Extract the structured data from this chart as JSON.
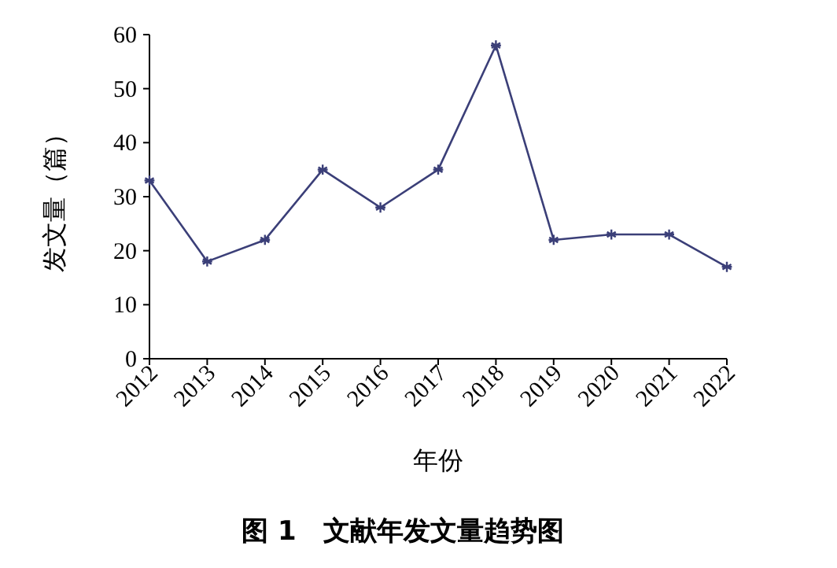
{
  "chart_data": {
    "type": "line",
    "title": "图 1　文献年发文量趋势图",
    "xlabel": "年份",
    "ylabel": "发文量（篇）",
    "categories": [
      "2012",
      "2013",
      "2014",
      "2015",
      "2016",
      "2017",
      "2018",
      "2019",
      "2020",
      "2021",
      "2022"
    ],
    "series": [
      {
        "color": "#3b3f78",
        "values": [
          33,
          18,
          22,
          35,
          28,
          35,
          58,
          22,
          23,
          23,
          17
        ]
      }
    ],
    "ylim": [
      0,
      60
    ],
    "yticks": [
      0,
      10,
      20,
      30,
      40,
      50,
      60
    ],
    "marker": "cross",
    "line_style": "solid"
  }
}
